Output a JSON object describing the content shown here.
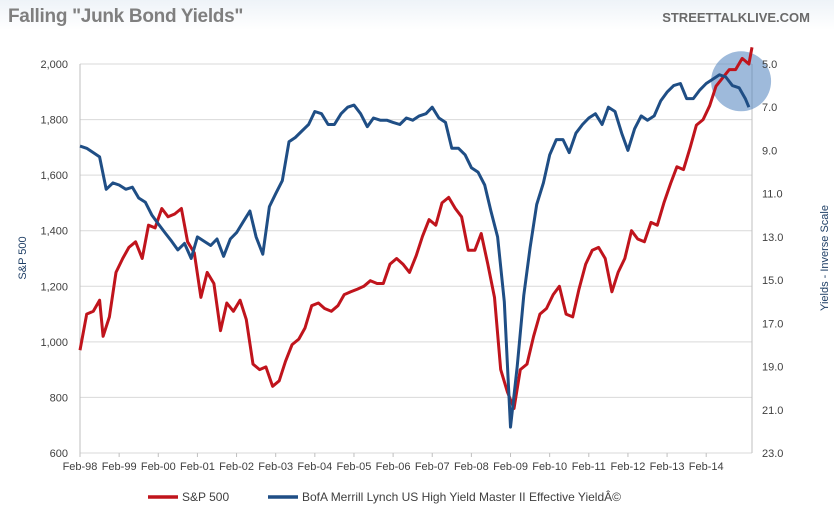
{
  "title": "Falling \"Junk Bond Yields\"",
  "watermark": "STREETTALKLIVE.COM",
  "chart_data": {
    "type": "line",
    "x_ticks": [
      "Feb-98",
      "Feb-99",
      "Feb-00",
      "Feb-01",
      "Feb-02",
      "Feb-03",
      "Feb-04",
      "Feb-05",
      "Feb-06",
      "Feb-07",
      "Feb-08",
      "Feb-09",
      "Feb-10",
      "Feb-11",
      "Feb-12",
      "Feb-13",
      "Feb-14"
    ],
    "y_left": {
      "label": "S&P 500",
      "ticks": [
        "600",
        "800",
        "1,000",
        "1,200",
        "1,400",
        "1,600",
        "1,800",
        "2,000"
      ],
      "range": [
        600,
        2000
      ]
    },
    "y_right": {
      "label": "Yields - Inverse Scale",
      "ticks": [
        "5.0",
        "7.0",
        "9.0",
        "11.0",
        "13.0",
        "15.0",
        "17.0",
        "19.0",
        "21.0",
        "23.0"
      ],
      "range": [
        23,
        5
      ],
      "inverted": true
    },
    "colors": {
      "sp500": "#c0141c",
      "hy": "#1f4e85",
      "grid": "#d9d9d9",
      "highlight": "#4f81bd"
    },
    "series": [
      {
        "name": "S&P 500",
        "axis": "left",
        "x": [
          1998.08,
          1998.25,
          1998.42,
          1998.58,
          1998.67,
          1998.83,
          1999.0,
          1999.17,
          1999.33,
          1999.5,
          1999.67,
          1999.83,
          2000.0,
          2000.17,
          2000.33,
          2000.5,
          2000.67,
          2000.83,
          2001.0,
          2001.17,
          2001.33,
          2001.5,
          2001.67,
          2001.83,
          2002.0,
          2002.17,
          2002.33,
          2002.5,
          2002.67,
          2002.83,
          2003.0,
          2003.17,
          2003.33,
          2003.5,
          2003.67,
          2003.83,
          2004.0,
          2004.17,
          2004.33,
          2004.5,
          2004.67,
          2004.83,
          2005.0,
          2005.17,
          2005.33,
          2005.5,
          2005.67,
          2005.83,
          2006.0,
          2006.17,
          2006.33,
          2006.5,
          2006.67,
          2006.83,
          2007.0,
          2007.17,
          2007.33,
          2007.5,
          2007.67,
          2007.83,
          2008.0,
          2008.17,
          2008.33,
          2008.5,
          2008.67,
          2008.83,
          2009.0,
          2009.17,
          2009.33,
          2009.5,
          2009.67,
          2009.83,
          2010.0,
          2010.17,
          2010.33,
          2010.5,
          2010.67,
          2010.83,
          2011.0,
          2011.17,
          2011.33,
          2011.5,
          2011.67,
          2011.83,
          2012.0,
          2012.17,
          2012.33,
          2012.5,
          2012.67,
          2012.83,
          2013.0,
          2013.17,
          2013.33,
          2013.5,
          2013.67,
          2013.83,
          2014.0,
          2014.17,
          2014.33,
          2014.5,
          2014.67,
          2014.83,
          2015.0,
          2015.17,
          2015.25
        ],
        "values": [
          970,
          1100,
          1110,
          1150,
          1020,
          1090,
          1250,
          1300,
          1340,
          1360,
          1300,
          1420,
          1410,
          1480,
          1450,
          1460,
          1480,
          1360,
          1320,
          1160,
          1250,
          1210,
          1040,
          1140,
          1110,
          1150,
          1080,
          920,
          900,
          910,
          840,
          860,
          930,
          990,
          1010,
          1050,
          1130,
          1140,
          1120,
          1110,
          1130,
          1170,
          1180,
          1190,
          1200,
          1220,
          1210,
          1210,
          1280,
          1300,
          1280,
          1250,
          1310,
          1380,
          1440,
          1420,
          1500,
          1520,
          1480,
          1450,
          1330,
          1330,
          1390,
          1280,
          1160,
          900,
          820,
          760,
          900,
          920,
          1020,
          1100,
          1120,
          1170,
          1200,
          1100,
          1090,
          1190,
          1280,
          1330,
          1340,
          1300,
          1180,
          1250,
          1300,
          1400,
          1370,
          1360,
          1430,
          1420,
          1500,
          1570,
          1630,
          1620,
          1700,
          1780,
          1800,
          1850,
          1920,
          1950,
          1980,
          1980,
          2020,
          2000,
          2060
        ]
      },
      {
        "name": "BofA Merrill Lynch US High Yield Master II Effective YieldÂ©",
        "axis": "right",
        "x": [
          1998.08,
          1998.25,
          1998.42,
          1998.58,
          1998.75,
          1998.92,
          1999.08,
          1999.25,
          1999.42,
          1999.58,
          1999.75,
          1999.92,
          2000.08,
          2000.25,
          2000.42,
          2000.58,
          2000.75,
          2000.92,
          2001.08,
          2001.25,
          2001.42,
          2001.58,
          2001.75,
          2001.92,
          2002.08,
          2002.25,
          2002.42,
          2002.58,
          2002.75,
          2002.92,
          2003.08,
          2003.25,
          2003.42,
          2003.58,
          2003.75,
          2003.92,
          2004.08,
          2004.25,
          2004.42,
          2004.58,
          2004.75,
          2004.92,
          2005.08,
          2005.25,
          2005.42,
          2005.58,
          2005.75,
          2005.92,
          2006.08,
          2006.25,
          2006.42,
          2006.58,
          2006.75,
          2006.92,
          2007.08,
          2007.25,
          2007.42,
          2007.58,
          2007.75,
          2007.92,
          2008.08,
          2008.25,
          2008.42,
          2008.58,
          2008.75,
          2008.92,
          2009.08,
          2009.25,
          2009.42,
          2009.58,
          2009.75,
          2009.92,
          2010.08,
          2010.25,
          2010.42,
          2010.58,
          2010.75,
          2010.92,
          2011.08,
          2011.25,
          2011.42,
          2011.58,
          2011.75,
          2011.92,
          2012.08,
          2012.25,
          2012.42,
          2012.58,
          2012.75,
          2012.92,
          2013.08,
          2013.25,
          2013.42,
          2013.58,
          2013.75,
          2013.92,
          2014.08,
          2014.25,
          2014.42,
          2014.58,
          2014.75,
          2014.92,
          2015.08,
          2015.17
        ],
        "values": [
          8.8,
          8.9,
          9.1,
          9.3,
          10.8,
          10.5,
          10.6,
          10.8,
          10.7,
          11.2,
          11.4,
          12.0,
          12.4,
          12.8,
          13.2,
          13.6,
          13.3,
          14.0,
          13.0,
          13.2,
          13.4,
          13.1,
          13.9,
          13.1,
          12.8,
          12.3,
          11.8,
          13.0,
          13.8,
          11.6,
          11.0,
          10.4,
          8.6,
          8.4,
          8.1,
          7.8,
          7.2,
          7.3,
          7.8,
          7.8,
          7.3,
          7.0,
          6.9,
          7.3,
          7.9,
          7.5,
          7.6,
          7.6,
          7.7,
          7.8,
          7.5,
          7.6,
          7.4,
          7.3,
          7.0,
          7.5,
          7.7,
          8.9,
          8.9,
          9.2,
          9.8,
          10.0,
          10.6,
          11.8,
          13.0,
          16.0,
          21.8,
          19.0,
          15.7,
          13.5,
          11.5,
          10.5,
          9.2,
          8.5,
          8.5,
          9.1,
          8.2,
          7.8,
          7.5,
          7.3,
          7.8,
          7.0,
          7.2,
          8.2,
          9.0,
          8.0,
          7.4,
          7.6,
          7.4,
          6.7,
          6.3,
          6.0,
          5.9,
          6.6,
          6.6,
          6.2,
          5.9,
          5.7,
          5.5,
          5.6,
          6.0,
          6.1,
          6.6,
          7.0
        ]
      }
    ],
    "legend_position": "bottom",
    "grid": true
  }
}
